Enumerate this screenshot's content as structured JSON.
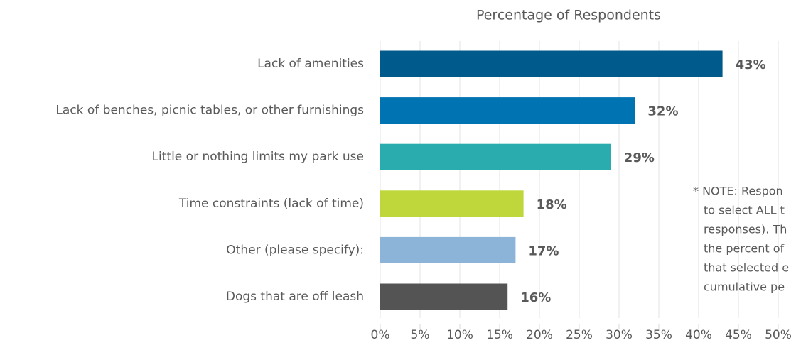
{
  "chart_data": {
    "type": "barh",
    "title": "Percentage of Respondents",
    "categories": [
      "Lack of amenities",
      "Lack of benches, picnic tables, or other furnishings",
      "Little or nothing limits my park use",
      "Time constraints (lack of time)",
      "Other (please specify):",
      "Dogs that are off leash"
    ],
    "values": [
      43,
      32,
      29,
      18,
      17,
      16
    ],
    "value_labels": [
      "43%",
      "32%",
      "29%",
      "18%",
      "17%",
      "16%"
    ],
    "colors": [
      "#005a8c",
      "#0073b3",
      "#2aacaf",
      "#bfd73a",
      "#8cb4d8",
      "#545454"
    ],
    "xlim": [
      0,
      50
    ],
    "xticks": [
      {
        "value": 0,
        "label": "0%"
      },
      {
        "value": 5,
        "label": "5%"
      },
      {
        "value": 10,
        "label": "10%"
      },
      {
        "value": 15,
        "label": "15%"
      },
      {
        "value": 20,
        "label": "20%"
      },
      {
        "value": 25,
        "label": "25%"
      },
      {
        "value": 30,
        "label": "30%"
      },
      {
        "value": 35,
        "label": "35%"
      },
      {
        "value": 40,
        "label": "40%"
      },
      {
        "value": 45,
        "label": "45%"
      },
      {
        "value": 50,
        "label": "50%"
      }
    ],
    "grid": true,
    "annotation": [
      "* NOTE: Respon",
      "to select ALL t",
      "responses). Th",
      "the percent of",
      "that selected e",
      "cumulative pe"
    ]
  }
}
